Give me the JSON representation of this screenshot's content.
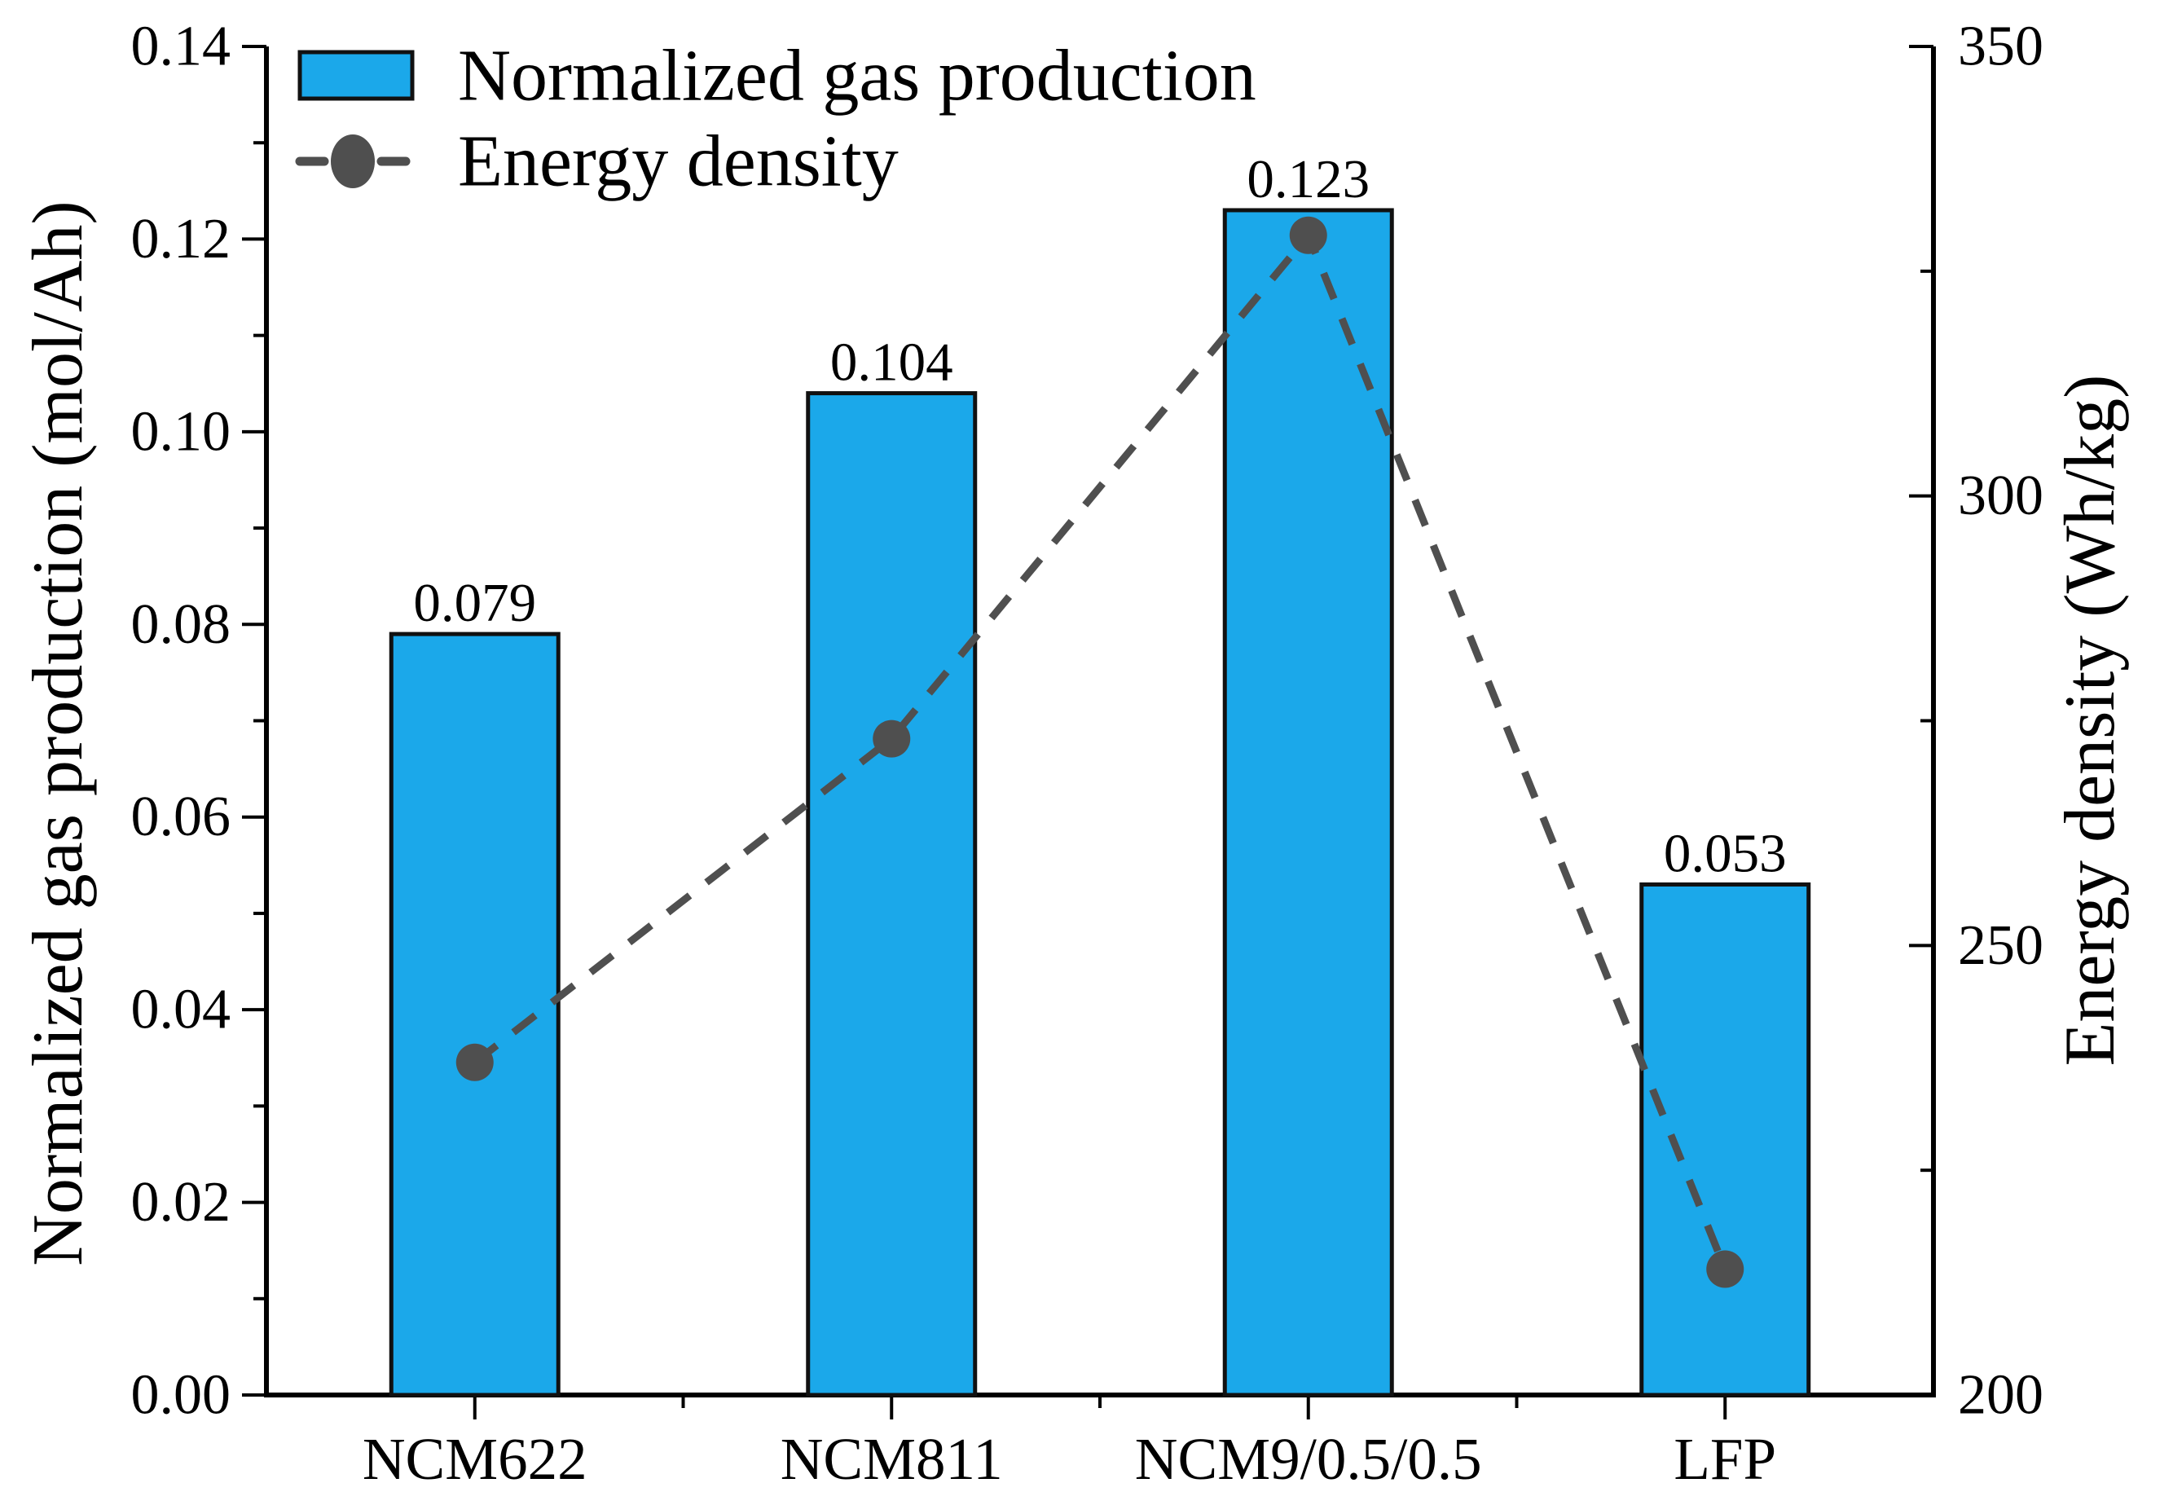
{
  "figure": {
    "background": "#ffffff",
    "axis_color": "#000000",
    "text_color": "#000000"
  },
  "chart_data": {
    "type": "bar",
    "subtype": "dual-axis bar + dashed line with circular markers",
    "categories": [
      "NCM622",
      "NCM811",
      "NCM9/0.5/0.5",
      "LFP"
    ],
    "series": [
      {
        "name": "Normalized gas production",
        "type": "bar",
        "axis": "left",
        "color": "#1BA8EA",
        "border_color": "#111111",
        "values": [
          0.079,
          0.104,
          0.123,
          0.053
        ],
        "value_labels": [
          "0.079",
          "0.104",
          "0.123",
          "0.053"
        ]
      },
      {
        "name": "Energy density",
        "type": "line",
        "line_style": "dashed",
        "marker": "filled-circle",
        "axis": "right",
        "color": "#4F4F4F",
        "values": [
          237,
          273,
          329,
          214
        ]
      }
    ],
    "left_axis": {
      "label": "Normalized gas production (mol/Ah)",
      "min": 0,
      "max": 0.14,
      "major_ticks": [
        "0.00",
        "0.02",
        "0.04",
        "0.06",
        "0.08",
        "0.10",
        "0.12",
        "0.14"
      ],
      "minor_ticks": [
        0.01,
        0.03,
        0.05,
        0.07,
        0.09,
        0.11,
        0.13
      ]
    },
    "right_axis": {
      "label": "Energy density (Wh/kg)",
      "min": 200,
      "max": 350,
      "major_ticks": [
        "200",
        "250",
        "300",
        "350"
      ],
      "minor_ticks": [
        225,
        275,
        325
      ]
    },
    "grid": false,
    "legend_position": "top-left-inside"
  }
}
